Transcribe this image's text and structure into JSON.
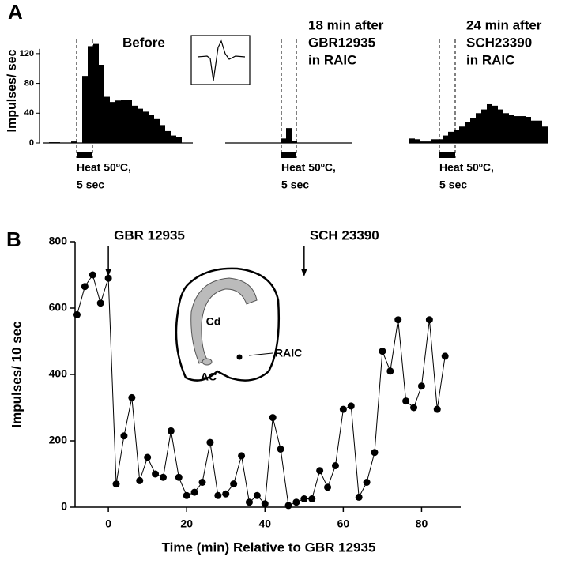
{
  "chart_data": [
    {
      "type": "bar",
      "label": "A",
      "title": [
        "Before"
      ],
      "ylabel": "Impulses/ sec",
      "annotation": [
        "Heat 50ºC,",
        "5 sec"
      ],
      "values": [
        0,
        1,
        1,
        0,
        0,
        2,
        0,
        90,
        130,
        133,
        105,
        62,
        55,
        57,
        58,
        58,
        50,
        46,
        42,
        38,
        32,
        24,
        16,
        10,
        8,
        0,
        0
      ],
      "color": "#000000",
      "ylim": [
        0,
        140
      ],
      "yticks": [
        0,
        40,
        80,
        120
      ]
    },
    {
      "type": "bar",
      "title": [
        "18 min after",
        "GBR12935",
        "in RAIC"
      ],
      "annotation": [
        "Heat 50ºC,",
        "5 sec"
      ],
      "values": [
        0,
        0,
        0,
        0,
        0,
        0,
        0,
        0,
        0,
        0,
        6,
        20,
        3,
        0,
        0,
        0,
        0,
        0,
        0,
        0,
        0,
        0,
        0
      ],
      "color": "#000000",
      "ylim": [
        0,
        140
      ]
    },
    {
      "type": "bar",
      "title": [
        "24 min after",
        "SCH23390",
        "in RAIC"
      ],
      "annotation": [
        "Heat 50ºC,",
        "5 sec"
      ],
      "values": [
        6,
        5,
        2,
        2,
        5,
        5,
        10,
        15,
        18,
        22,
        28,
        33,
        40,
        45,
        52,
        50,
        45,
        40,
        38,
        36,
        36,
        35,
        30,
        30,
        22
      ],
      "color": "#000000",
      "ylim": [
        0,
        140
      ]
    },
    {
      "type": "line",
      "label": "B",
      "ylabel": "Impulses/ 10 sec",
      "xlabel": "Time (min) Relative to GBR 12935",
      "x": [
        -8,
        -6,
        -4,
        -2,
        0,
        2,
        4,
        6,
        8,
        10,
        12,
        14,
        16,
        18,
        20,
        22,
        24,
        26,
        28,
        30,
        32,
        34,
        36,
        38,
        40,
        42,
        44,
        46,
        48,
        50,
        52,
        54,
        56,
        58,
        60,
        62,
        64,
        66,
        68,
        70,
        72,
        74,
        76,
        78,
        80,
        82,
        84,
        86
      ],
      "values": [
        580,
        665,
        700,
        615,
        690,
        70,
        215,
        330,
        80,
        150,
        100,
        90,
        230,
        90,
        35,
        45,
        75,
        195,
        35,
        40,
        70,
        155,
        15,
        35,
        10,
        270,
        175,
        5,
        15,
        25,
        25,
        110,
        60,
        125,
        295,
        305,
        30,
        75,
        165,
        470,
        410,
        565,
        320,
        300,
        365,
        565,
        295,
        455
      ],
      "color": "#000000",
      "xlim": [
        -8.5,
        90
      ],
      "ylim": [
        0,
        800
      ],
      "xticks": [
        0,
        20,
        40,
        60,
        80
      ],
      "yticks": [
        0,
        200,
        400,
        600,
        800
      ],
      "annotations": [
        {
          "text": "GBR 12935",
          "x": 0
        },
        {
          "text": "SCH 23390",
          "x": 50
        }
      ],
      "inset_labels": [
        "Cd",
        "AC",
        "RAIC"
      ]
    }
  ]
}
